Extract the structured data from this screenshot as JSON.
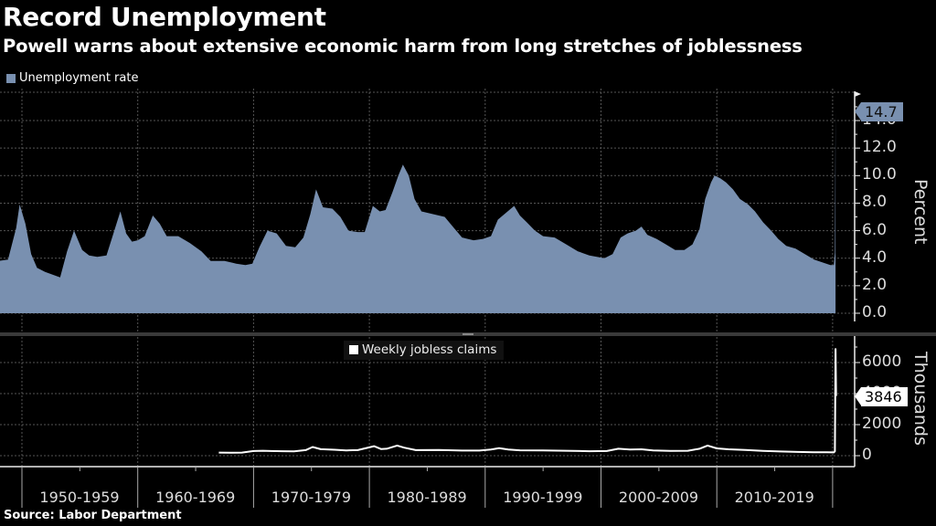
{
  "header": {
    "title": "Record Unemployment",
    "subtitle": "Powell warns about extensive economic harm from long stretches of joblessness"
  },
  "footer": {
    "source": "Source: Labor Department"
  },
  "colors": {
    "unemployment": "#7990b0",
    "claims": "#ffffff",
    "background": "#000000",
    "grid": "#555555"
  },
  "chart_data": [
    {
      "type": "area",
      "title": "Unemployment rate",
      "legend": [
        "Unemployment rate"
      ],
      "ylabel": "Percent",
      "ylim": [
        0,
        15
      ],
      "yticks": [
        "0.0",
        "2.0",
        "4.0",
        "6.0",
        "8.0",
        "10.0",
        "12.0",
        "14.0"
      ],
      "last_value_label": "14.7",
      "series": [
        {
          "name": "Unemployment rate",
          "x": [
            1948.0,
            1948.8,
            1949.5,
            1949.8,
            1950.3,
            1950.8,
            1951.3,
            1952.0,
            1953.3,
            1953.9,
            1954.5,
            1955.2,
            1955.8,
            1956.5,
            1957.3,
            1957.9,
            1958.5,
            1959.0,
            1959.5,
            1960.0,
            1960.6,
            1961.3,
            1961.9,
            1962.5,
            1963.5,
            1964.5,
            1965.5,
            1966.3,
            1967.5,
            1968.5,
            1969.3,
            1969.9,
            1970.5,
            1971.2,
            1972.0,
            1972.8,
            1973.6,
            1974.3,
            1974.9,
            1975.4,
            1976.0,
            1976.8,
            1977.5,
            1978.2,
            1979.0,
            1979.6,
            1980.3,
            1980.9,
            1981.4,
            1982.0,
            1982.5,
            1982.9,
            1983.4,
            1983.9,
            1984.5,
            1985.5,
            1986.5,
            1987.3,
            1988.0,
            1989.0,
            1989.8,
            1990.5,
            1991.1,
            1991.8,
            1992.5,
            1993.0,
            1993.6,
            1994.3,
            1995.0,
            1996.0,
            1997.0,
            1998.0,
            1999.0,
            2000.3,
            2001.0,
            2001.7,
            2002.3,
            2003.0,
            2003.5,
            2004.0,
            2004.8,
            2005.6,
            2006.4,
            2007.2,
            2007.9,
            2008.5,
            2009.0,
            2009.5,
            2009.8,
            2010.3,
            2010.8,
            2011.4,
            2012.0,
            2012.7,
            2013.3,
            2014.0,
            2014.7,
            2015.3,
            2016.0,
            2016.8,
            2017.6,
            2018.4,
            2019.1,
            2019.8,
            2020.1,
            2020.2,
            2020.25
          ],
          "values": [
            3.8,
            3.9,
            6.2,
            7.9,
            6.5,
            4.3,
            3.3,
            3.0,
            2.6,
            4.5,
            6.0,
            4.6,
            4.2,
            4.1,
            4.2,
            5.8,
            7.4,
            5.8,
            5.2,
            5.3,
            5.6,
            7.1,
            6.5,
            5.6,
            5.6,
            5.1,
            4.5,
            3.8,
            3.8,
            3.6,
            3.5,
            3.6,
            4.8,
            6.0,
            5.8,
            4.9,
            4.8,
            5.5,
            7.2,
            9.0,
            7.7,
            7.6,
            7.0,
            6.0,
            5.9,
            5.9,
            7.8,
            7.4,
            7.5,
            8.8,
            10.0,
            10.8,
            10.0,
            8.3,
            7.4,
            7.2,
            7.0,
            6.2,
            5.5,
            5.3,
            5.4,
            5.6,
            6.8,
            7.3,
            7.8,
            7.1,
            6.6,
            6.0,
            5.6,
            5.5,
            5.0,
            4.5,
            4.2,
            4.0,
            4.3,
            5.5,
            5.8,
            6.0,
            6.3,
            5.7,
            5.4,
            5.0,
            4.6,
            4.6,
            5.0,
            6.1,
            8.3,
            9.5,
            10.0,
            9.8,
            9.5,
            9.0,
            8.3,
            7.9,
            7.4,
            6.6,
            6.0,
            5.4,
            4.9,
            4.7,
            4.3,
            3.9,
            3.7,
            3.5,
            3.5,
            4.4,
            14.7
          ]
        }
      ]
    },
    {
      "type": "line",
      "title": "Weekly jobless claims",
      "legend": [
        "Weekly jobless claims"
      ],
      "ylabel": "Thousands",
      "ylim": [
        0,
        7400
      ],
      "yticks": [
        "0",
        "2000",
        "4000",
        "6000"
      ],
      "last_value_label": "3846",
      "series": [
        {
          "name": "Weekly jobless claims",
          "x": [
            1967.0,
            1968.0,
            1969.0,
            1970.0,
            1970.8,
            1971.5,
            1972.5,
            1973.5,
            1974.5,
            1975.1,
            1975.8,
            1977.0,
            1978.0,
            1979.0,
            1980.4,
            1981.0,
            1981.5,
            1982.4,
            1983.0,
            1984.0,
            1986.0,
            1988.0,
            1989.5,
            1990.5,
            1991.2,
            1992.0,
            1993.0,
            1995.0,
            1997.0,
            1999.0,
            2000.5,
            2001.5,
            2002.5,
            2003.5,
            2004.5,
            2006.0,
            2007.5,
            2008.5,
            2009.2,
            2010.0,
            2011.0,
            2012.5,
            2014.0,
            2015.5,
            2017.0,
            2018.5,
            2019.5,
            2020.1,
            2020.2,
            2020.25,
            2020.3
          ],
          "values": [
            200,
            190,
            200,
            300,
            320,
            300,
            290,
            280,
            360,
            560,
            420,
            380,
            340,
            360,
            610,
            430,
            450,
            650,
            520,
            360,
            370,
            330,
            330,
            400,
            480,
            400,
            350,
            340,
            320,
            290,
            300,
            450,
            400,
            410,
            340,
            310,
            320,
            450,
            650,
            470,
            410,
            370,
            310,
            270,
            240,
            215,
            215,
            210,
            280,
            6867,
            3846
          ]
        }
      ]
    }
  ],
  "x_axis": {
    "labels": [
      "1950-1959",
      "1960-1969",
      "1970-1979",
      "1980-1989",
      "1990-1999",
      "2000-2009",
      "2010-2019"
    ]
  }
}
